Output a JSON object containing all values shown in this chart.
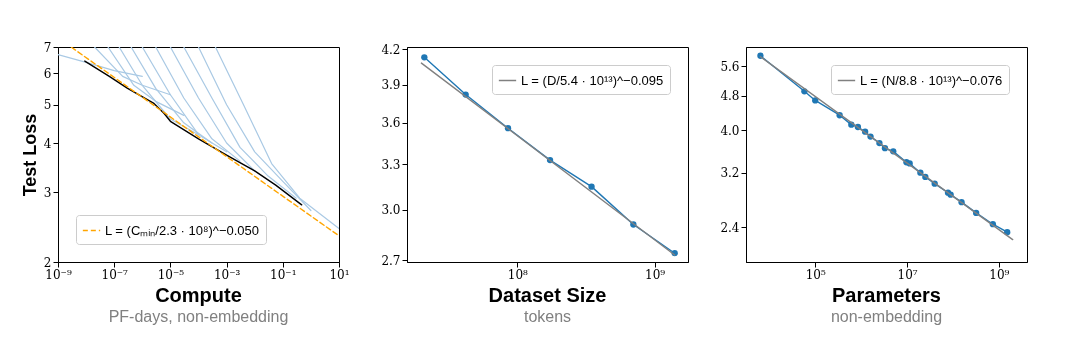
{
  "chart_data": [
    {
      "type": "line",
      "xlabel": "Compute",
      "ylabel": "Test Loss",
      "annotations": [
        "PF-days, non-embedding"
      ],
      "log": "xy",
      "grid": false,
      "legend": "bottom left",
      "xlim": [
        1e-09,
        10
      ],
      "ylim": [
        2,
        7
      ],
      "xticks": [
        {
          "value": 1e-09,
          "label": "10⁻⁹"
        },
        {
          "value": 1e-07,
          "label": "10⁻⁷"
        },
        {
          "value": 1e-05,
          "label": "10⁻⁵"
        },
        {
          "value": 0.001,
          "label": "10⁻³"
        },
        {
          "value": 0.1,
          "label": "10⁻¹"
        },
        {
          "value": 10,
          "label": "10¹"
        }
      ],
      "yticks": [
        2,
        3,
        4,
        5,
        6,
        7
      ],
      "series": [
        {
          "color": "#a9c9e4",
          "x": [
            1e-09,
            1e-08,
            1e-07,
            1e-06
          ],
          "values": [
            6.7,
            6.4,
            6.1,
            5.9
          ]
        },
        {
          "color": "#a9c9e4",
          "x": [
            2e-08,
            2e-07,
            1e-06,
            1e-05
          ],
          "values": [
            7,
            5.9,
            5.6,
            5.3
          ]
        },
        {
          "color": "#a9c9e4",
          "x": [
            6e-08,
            5e-07,
            3e-06,
            3e-05
          ],
          "values": [
            7,
            5.6,
            5.1,
            4.7
          ]
        },
        {
          "color": "#a9c9e4",
          "x": [
            1.5e-07,
            1e-06,
            1e-05,
            0.0001
          ],
          "values": [
            7,
            5.6,
            4.6,
            4.2
          ]
        },
        {
          "color": "#a9c9e4",
          "x": [
            4e-07,
            3e-06,
            3e-05,
            0.0003
          ],
          "values": [
            7,
            5.5,
            4.5,
            4.0
          ]
        },
        {
          "color": "#a9c9e4",
          "x": [
            1e-06,
            1e-05,
            0.0001,
            0.001
          ],
          "values": [
            7,
            5.3,
            4.2,
            3.8
          ]
        },
        {
          "color": "#a9c9e4",
          "x": [
            3e-06,
            3e-05,
            0.0003,
            0.003
          ],
          "values": [
            7,
            5.2,
            4.1,
            3.6
          ]
        },
        {
          "color": "#a9c9e4",
          "x": [
            1e-05,
            0.0001,
            0.001,
            0.01
          ],
          "values": [
            7,
            5.2,
            4.0,
            3.4
          ]
        },
        {
          "color": "#a9c9e4",
          "x": [
            3e-05,
            0.0003,
            0.003,
            0.03,
            0.3
          ],
          "values": [
            7,
            5.2,
            3.9,
            3.3,
            2.9
          ]
        },
        {
          "color": "#a9c9e4",
          "x": [
            0.0001,
            0.001,
            0.01,
            0.1,
            1
          ],
          "values": [
            7,
            5.0,
            3.8,
            3.2,
            2.7
          ]
        },
        {
          "color": "#a9c9e4",
          "x": [
            0.0004,
            0.004,
            0.04,
            0.4,
            10
          ],
          "values": [
            7,
            5.0,
            3.55,
            2.9,
            2.43
          ]
        },
        {
          "color": "#000000",
          "x": [
            9e-09,
            6.7e-08,
            3e-07,
            2.5e-06,
            6e-06,
            1e-05,
            0.0001,
            0.001,
            0.01,
            0.056,
            0.47
          ],
          "values": [
            6.45,
            5.9,
            5.5,
            5.05,
            4.75,
            4.54,
            4.1,
            3.73,
            3.4,
            3.13,
            2.79
          ]
        },
        {
          "name": "L = (Cₘᵢₙ/2.3 · 10⁸)^−0.050",
          "color": "#ffa500",
          "line_style": "dashed",
          "x": [
            3e-09,
            10
          ],
          "values": [
            6.99,
            2.33
          ]
        }
      ]
    },
    {
      "type": "line",
      "xlabel": "Dataset Size",
      "annotations": [
        "tokens"
      ],
      "log": "xy",
      "grid": false,
      "legend": "top right",
      "xlim": [
        15700000.0,
        1750000000.0
      ],
      "ylim": [
        2.69,
        4.22
      ],
      "xticks": [
        {
          "value": 100000000.0,
          "label": "10⁸"
        },
        {
          "value": 1000000000.0,
          "label": "10⁹"
        }
      ],
      "yticks": [
        2.7,
        {
          "value": 3,
          "label": "3.0"
        },
        3.3,
        3.6,
        3.9,
        4.2
      ],
      "series": [
        {
          "color": "#1f77b4",
          "marker": "circle",
          "x": [
            21000000.0,
            42000000.0,
            85500000.0,
            173000000.0,
            347000000.0,
            700000000.0,
            1400000000.0
          ],
          "values": [
            4.13,
            3.82,
            3.56,
            3.33,
            3.15,
            2.91,
            2.74
          ]
        },
        {
          "name": "L = (D/5.4 · 10¹³)^−0.095",
          "color": "#808080",
          "x": [
            20000000.0,
            1400000000.0
          ],
          "values": [
            4.08,
            2.73
          ]
        }
      ]
    },
    {
      "type": "line",
      "xlabel": "Parameters",
      "annotations": [
        "non-embedding"
      ],
      "log": "xy",
      "grid": false,
      "legend": "top right",
      "xlim": [
        3100.0,
        4100000000.0
      ],
      "ylim": [
        2.0,
        6.2
      ],
      "xticks": [
        {
          "value": 100000.0,
          "label": "10⁵"
        },
        {
          "value": 10000000.0,
          "label": "10⁷"
        },
        {
          "value": 1000000000.0,
          "label": "10⁹"
        }
      ],
      "yticks": [
        2.4,
        3.2,
        {
          "value": 4,
          "label": "4.0"
        },
        4.8,
        5.6
      ],
      "series": [
        {
          "color": "#1f77b4",
          "marker": "circle",
          "x": [
            6400.0,
            58000.0,
            100000.0,
            340000.0,
            610000.0,
            850000.0,
            1220000.0,
            1600000.0,
            2500000.0,
            3300000.0,
            5000000.0,
            9700000.0,
            11400000.0,
            19500000.0,
            25000000.0,
            40000000.0,
            78000000.0,
            89000000.0,
            154000000.0,
            320000000.0,
            740000000.0,
            1520000000.0
          ],
          "values": [
            5.92,
            4.91,
            4.68,
            4.33,
            4.12,
            4.07,
            3.97,
            3.87,
            3.74,
            3.64,
            3.58,
            3.38,
            3.36,
            3.2,
            3.13,
            3.02,
            2.88,
            2.85,
            2.74,
            2.59,
            2.44,
            2.34
          ]
        },
        {
          "name": "L = (N/8.8 · 10¹³)^−0.076",
          "color": "#808080",
          "x": [
            6400.0,
            2000000000.0
          ],
          "values": [
            5.89,
            2.25
          ]
        }
      ]
    }
  ]
}
